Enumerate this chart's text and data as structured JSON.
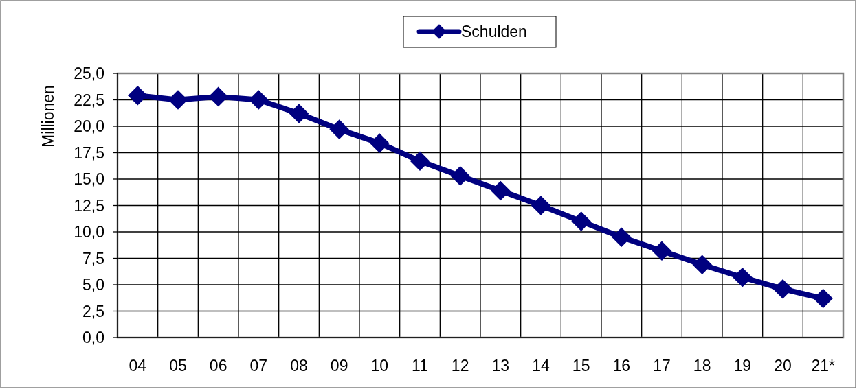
{
  "chart_data": {
    "type": "line",
    "ylabel": "Millionen",
    "categories": [
      "04",
      "05",
      "06",
      "07",
      "08",
      "09",
      "10",
      "11",
      "12",
      "13",
      "14",
      "15",
      "16",
      "17",
      "18",
      "19",
      "20",
      "21*"
    ],
    "series": [
      {
        "name": "Schulden",
        "color": "#000080",
        "values": [
          22.9,
          22.5,
          22.8,
          22.5,
          21.2,
          19.7,
          18.4,
          16.7,
          15.3,
          13.9,
          12.5,
          11.0,
          9.5,
          8.2,
          6.9,
          5.7,
          4.6,
          3.7
        ]
      }
    ],
    "ylim": [
      0,
      25
    ],
    "yticks": [
      {
        "value": 0,
        "label": "0,0"
      },
      {
        "value": 2.5,
        "label": "2,5"
      },
      {
        "value": 5,
        "label": "5,0"
      },
      {
        "value": 7.5,
        "label": "7,5"
      },
      {
        "value": 10,
        "label": "10,0"
      },
      {
        "value": 12.5,
        "label": "12,5"
      },
      {
        "value": 15,
        "label": "15,0"
      },
      {
        "value": 17.5,
        "label": "17,5"
      },
      {
        "value": 20,
        "label": "20,0"
      },
      {
        "value": 22.5,
        "label": "22,5"
      },
      {
        "value": 25,
        "label": "25,0"
      }
    ],
    "grid": true,
    "legend": "top",
    "marker": "diamond",
    "line_style": "solid"
  }
}
